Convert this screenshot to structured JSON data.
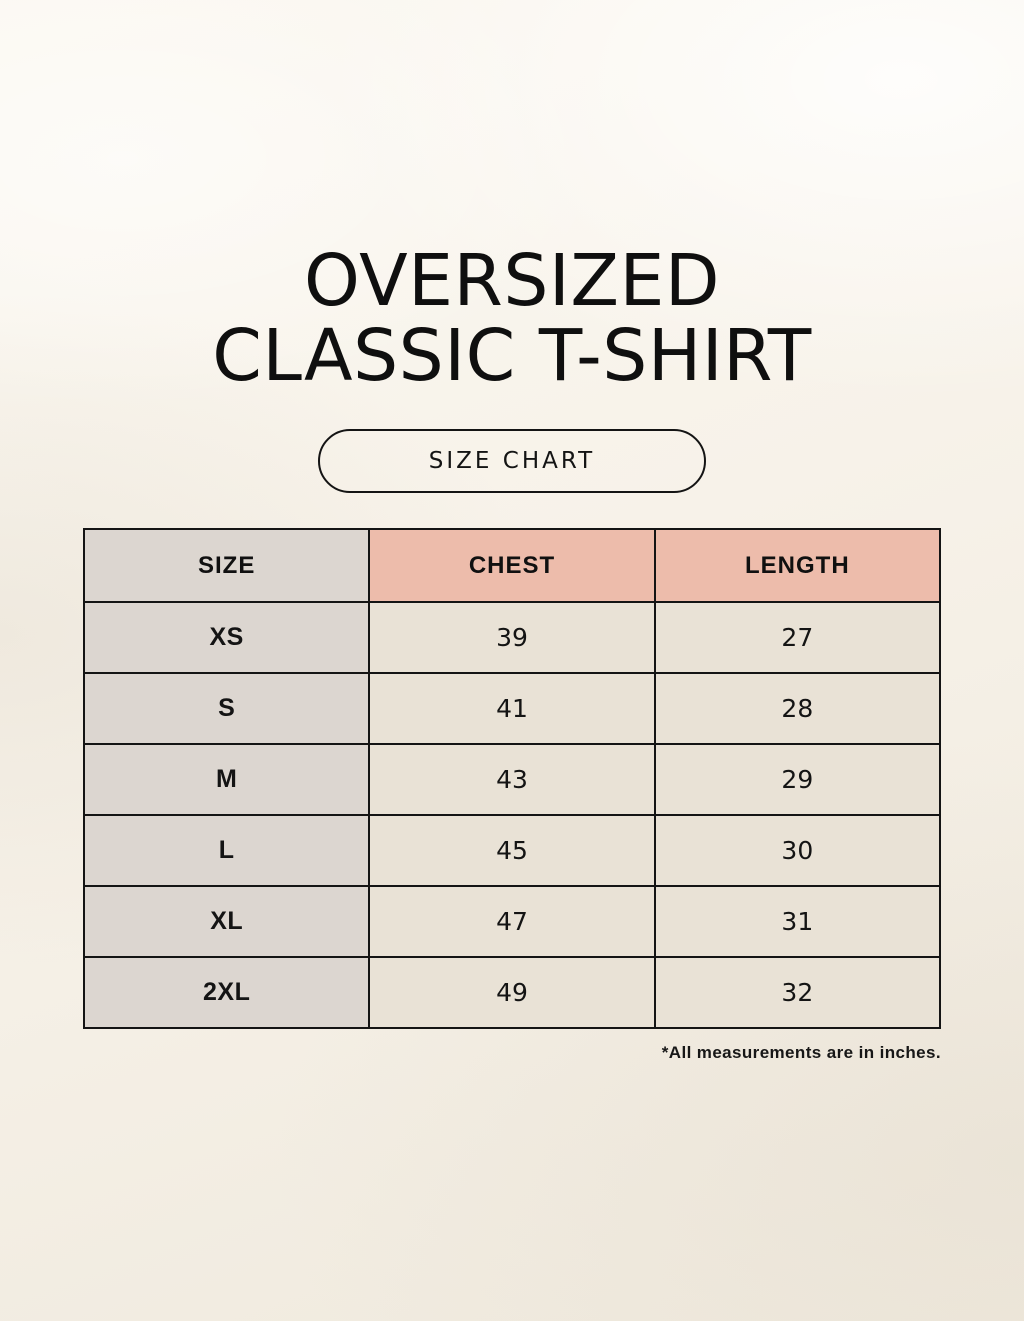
{
  "header": {
    "title_line1": "OVERSIZED",
    "title_line2": "CLASSIC T-SHIRT",
    "size_chart_button_label": "SIZE CHART"
  },
  "chart_data": {
    "type": "table",
    "title": "SIZE CHART",
    "columns": [
      "SIZE",
      "CHEST",
      "LENGTH"
    ],
    "rows": [
      {
        "size": "XS",
        "chest": 39,
        "length": 27
      },
      {
        "size": "S",
        "chest": 41,
        "length": 28
      },
      {
        "size": "M",
        "chest": 43,
        "length": 29
      },
      {
        "size": "L",
        "chest": 45,
        "length": 30
      },
      {
        "size": "XL",
        "chest": 47,
        "length": 31
      },
      {
        "size": "2XL",
        "chest": 49,
        "length": 32
      }
    ],
    "units": "inches",
    "footnote": "*All measurements are in inches."
  },
  "colors": {
    "background_cream": "#f7f2e9",
    "size_column_bg": "#dcd6d0",
    "measure_header_bg": "#edbcab",
    "data_cell_bg": "#e9e2d6",
    "border_black": "#141414",
    "text_black": "#141414"
  }
}
